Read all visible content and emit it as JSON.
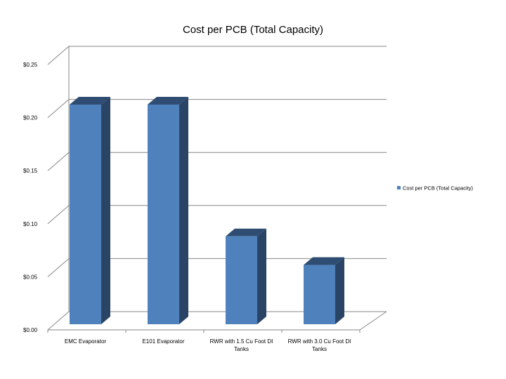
{
  "chart_data": {
    "type": "bar",
    "title": "Cost per PCB (Total Capacity)",
    "categories": [
      "EMC Evaporator",
      "E101 Evaporator",
      "RWR with 1.5 Cu Foot DI Tanks",
      "RWR with 3.0 Cu Foot DI Tanks"
    ],
    "category_lines": [
      [
        "EMC Evaporator"
      ],
      [
        "E101 Evaporator"
      ],
      [
        "RWR with 1.5 Cu Foot DI",
        "Tanks"
      ],
      [
        "RWR with 3.0 Cu Foot DI",
        "Tanks"
      ]
    ],
    "series": [
      {
        "name": "Cost per PCB (Total Capacity)",
        "values": [
          0.215,
          0.215,
          0.086,
          0.058
        ]
      }
    ],
    "yticks": [
      "$0.00",
      "$0.05",
      "$0.10",
      "$0.15",
      "$0.20",
      "$0.25"
    ],
    "ylim": [
      0,
      0.25
    ],
    "xlabel": "",
    "ylabel": "",
    "grid": true,
    "legend_position": "right",
    "colors": {
      "bar_front": "#4F81BD",
      "bar_side": "#2A4465",
      "bar_top": "#2F4D72",
      "grid": "#868686"
    }
  }
}
